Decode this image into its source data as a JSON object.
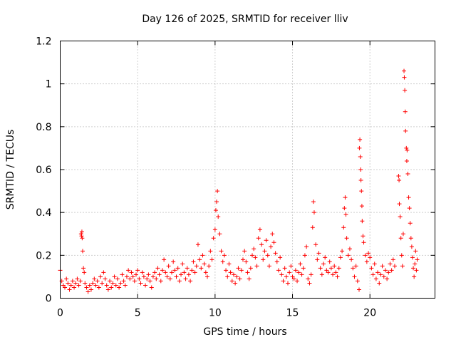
{
  "chart_data": {
    "type": "scatter",
    "title": "Day 126 of 2025, SRMTID for receiver lliv",
    "xlabel": "GPS time / hours",
    "ylabel": "SRMTID / TECUs",
    "xlim": [
      0,
      24.2
    ],
    "ylim": [
      0,
      1.2
    ],
    "xticks": [
      0,
      5,
      10,
      15,
      20
    ],
    "xtick_labels": [
      "0",
      "5",
      "10",
      "15",
      "20"
    ],
    "yticks": [
      0,
      0.2,
      0.4,
      0.6,
      0.8,
      1.0,
      1.2
    ],
    "ytick_labels": [
      "0",
      "0.2",
      "0.4",
      "0.6",
      "0.8",
      "1",
      "1.2"
    ],
    "grid": true,
    "marker": "+",
    "series": [
      {
        "name": "SRMTID",
        "color": "#ff0000",
        "points": [
          [
            0.0,
            0.13
          ],
          [
            0.1,
            0.08
          ],
          [
            0.2,
            0.06
          ],
          [
            0.3,
            0.05
          ],
          [
            0.4,
            0.09
          ],
          [
            0.5,
            0.07
          ],
          [
            0.6,
            0.04
          ],
          [
            0.7,
            0.06
          ],
          [
            0.8,
            0.08
          ],
          [
            0.9,
            0.05
          ],
          [
            1.0,
            0.07
          ],
          [
            1.1,
            0.09
          ],
          [
            1.2,
            0.06
          ],
          [
            1.3,
            0.08
          ],
          [
            1.35,
            0.3
          ],
          [
            1.38,
            0.29
          ],
          [
            1.4,
            0.31
          ],
          [
            1.42,
            0.28
          ],
          [
            1.45,
            0.22
          ],
          [
            1.5,
            0.14
          ],
          [
            1.55,
            0.12
          ],
          [
            1.6,
            0.07
          ],
          [
            1.7,
            0.05
          ],
          [
            1.8,
            0.03
          ],
          [
            1.9,
            0.06
          ],
          [
            2.0,
            0.04
          ],
          [
            2.1,
            0.07
          ],
          [
            2.2,
            0.09
          ],
          [
            2.3,
            0.06
          ],
          [
            2.4,
            0.08
          ],
          [
            2.5,
            0.05
          ],
          [
            2.6,
            0.1
          ],
          [
            2.7,
            0.07
          ],
          [
            2.8,
            0.12
          ],
          [
            2.9,
            0.09
          ],
          [
            3.0,
            0.06
          ],
          [
            3.1,
            0.04
          ],
          [
            3.2,
            0.08
          ],
          [
            3.3,
            0.05
          ],
          [
            3.4,
            0.07
          ],
          [
            3.5,
            0.1
          ],
          [
            3.6,
            0.06
          ],
          [
            3.7,
            0.09
          ],
          [
            3.8,
            0.05
          ],
          [
            3.9,
            0.07
          ],
          [
            4.0,
            0.11
          ],
          [
            4.1,
            0.08
          ],
          [
            4.2,
            0.06
          ],
          [
            4.3,
            0.1
          ],
          [
            4.4,
            0.13
          ],
          [
            4.5,
            0.09
          ],
          [
            4.6,
            0.12
          ],
          [
            4.7,
            0.1
          ],
          [
            4.8,
            0.08
          ],
          [
            4.9,
            0.11
          ],
          [
            5.0,
            0.13
          ],
          [
            5.1,
            0.09
          ],
          [
            5.2,
            0.07
          ],
          [
            5.3,
            0.12
          ],
          [
            5.4,
            0.1
          ],
          [
            5.5,
            0.06
          ],
          [
            5.6,
            0.09
          ],
          [
            5.7,
            0.11
          ],
          [
            5.8,
            0.08
          ],
          [
            5.9,
            0.05
          ],
          [
            6.0,
            0.1
          ],
          [
            6.1,
            0.12
          ],
          [
            6.2,
            0.09
          ],
          [
            6.3,
            0.14
          ],
          [
            6.4,
            0.11
          ],
          [
            6.5,
            0.08
          ],
          [
            6.6,
            0.13
          ],
          [
            6.7,
            0.18
          ],
          [
            6.8,
            0.12
          ],
          [
            6.9,
            0.1
          ],
          [
            7.0,
            0.15
          ],
          [
            7.1,
            0.09
          ],
          [
            7.2,
            0.12
          ],
          [
            7.3,
            0.17
          ],
          [
            7.4,
            0.13
          ],
          [
            7.5,
            0.1
          ],
          [
            7.6,
            0.14
          ],
          [
            7.7,
            0.08
          ],
          [
            7.8,
            0.11
          ],
          [
            7.9,
            0.16
          ],
          [
            8.0,
            0.12
          ],
          [
            8.1,
            0.09
          ],
          [
            8.2,
            0.14
          ],
          [
            8.3,
            0.11
          ],
          [
            8.4,
            0.08
          ],
          [
            8.5,
            0.13
          ],
          [
            8.6,
            0.17
          ],
          [
            8.7,
            0.12
          ],
          [
            8.8,
            0.15
          ],
          [
            8.9,
            0.25
          ],
          [
            9.0,
            0.18
          ],
          [
            9.1,
            0.14
          ],
          [
            9.2,
            0.2
          ],
          [
            9.3,
            0.16
          ],
          [
            9.4,
            0.12
          ],
          [
            9.5,
            0.1
          ],
          [
            9.6,
            0.15
          ],
          [
            9.7,
            0.22
          ],
          [
            9.8,
            0.18
          ],
          [
            9.9,
            0.28
          ],
          [
            10.0,
            0.32
          ],
          [
            10.05,
            0.41
          ],
          [
            10.1,
            0.45
          ],
          [
            10.15,
            0.5
          ],
          [
            10.2,
            0.38
          ],
          [
            10.3,
            0.3
          ],
          [
            10.4,
            0.22
          ],
          [
            10.5,
            0.17
          ],
          [
            10.6,
            0.2
          ],
          [
            10.7,
            0.13
          ],
          [
            10.8,
            0.1
          ],
          [
            10.9,
            0.16
          ],
          [
            11.0,
            0.12
          ],
          [
            11.1,
            0.08
          ],
          [
            11.2,
            0.11
          ],
          [
            11.3,
            0.07
          ],
          [
            11.4,
            0.1
          ],
          [
            11.5,
            0.14
          ],
          [
            11.6,
            0.09
          ],
          [
            11.7,
            0.13
          ],
          [
            11.8,
            0.18
          ],
          [
            11.9,
            0.22
          ],
          [
            12.0,
            0.17
          ],
          [
            12.1,
            0.12
          ],
          [
            12.2,
            0.09
          ],
          [
            12.3,
            0.14
          ],
          [
            12.4,
            0.2
          ],
          [
            12.5,
            0.23
          ],
          [
            12.6,
            0.19
          ],
          [
            12.7,
            0.15
          ],
          [
            12.8,
            0.28
          ],
          [
            12.9,
            0.32
          ],
          [
            13.0,
            0.25
          ],
          [
            13.1,
            0.18
          ],
          [
            13.2,
            0.22
          ],
          [
            13.3,
            0.27
          ],
          [
            13.4,
            0.2
          ],
          [
            13.5,
            0.15
          ],
          [
            13.6,
            0.24
          ],
          [
            13.7,
            0.3
          ],
          [
            13.8,
            0.26
          ],
          [
            13.9,
            0.21
          ],
          [
            14.0,
            0.17
          ],
          [
            14.1,
            0.13
          ],
          [
            14.2,
            0.19
          ],
          [
            14.3,
            0.11
          ],
          [
            14.4,
            0.08
          ],
          [
            14.5,
            0.14
          ],
          [
            14.6,
            0.1
          ],
          [
            14.7,
            0.07
          ],
          [
            14.8,
            0.12
          ],
          [
            14.9,
            0.15
          ],
          [
            15.0,
            0.1
          ],
          [
            15.1,
            0.09
          ],
          [
            15.2,
            0.13
          ],
          [
            15.3,
            0.08
          ],
          [
            15.4,
            0.12
          ],
          [
            15.5,
            0.16
          ],
          [
            15.6,
            0.11
          ],
          [
            15.7,
            0.14
          ],
          [
            15.8,
            0.2
          ],
          [
            15.9,
            0.24
          ],
          [
            16.0,
            0.09
          ],
          [
            16.1,
            0.07
          ],
          [
            16.2,
            0.11
          ],
          [
            16.3,
            0.33
          ],
          [
            16.35,
            0.45
          ],
          [
            16.4,
            0.4
          ],
          [
            16.5,
            0.25
          ],
          [
            16.6,
            0.18
          ],
          [
            16.7,
            0.21
          ],
          [
            16.8,
            0.14
          ],
          [
            16.9,
            0.11
          ],
          [
            17.0,
            0.16
          ],
          [
            17.1,
            0.19
          ],
          [
            17.2,
            0.13
          ],
          [
            17.3,
            0.12
          ],
          [
            17.4,
            0.17
          ],
          [
            17.5,
            0.14
          ],
          [
            17.6,
            0.11
          ],
          [
            17.7,
            0.15
          ],
          [
            17.8,
            0.12
          ],
          [
            17.9,
            0.1
          ],
          [
            18.0,
            0.14
          ],
          [
            18.1,
            0.19
          ],
          [
            18.2,
            0.22
          ],
          [
            18.3,
            0.33
          ],
          [
            18.35,
            0.42
          ],
          [
            18.4,
            0.47
          ],
          [
            18.45,
            0.39
          ],
          [
            18.5,
            0.28
          ],
          [
            18.6,
            0.2
          ],
          [
            18.7,
            0.23
          ],
          [
            18.8,
            0.18
          ],
          [
            18.9,
            0.14
          ],
          [
            19.0,
            0.1
          ],
          [
            19.1,
            0.15
          ],
          [
            19.2,
            0.08
          ],
          [
            19.3,
            0.04
          ],
          [
            19.32,
            0.7
          ],
          [
            19.35,
            0.74
          ],
          [
            19.38,
            0.66
          ],
          [
            19.4,
            0.6
          ],
          [
            19.42,
            0.55
          ],
          [
            19.45,
            0.5
          ],
          [
            19.48,
            0.43
          ],
          [
            19.5,
            0.36
          ],
          [
            19.55,
            0.29
          ],
          [
            19.6,
            0.26
          ],
          [
            19.7,
            0.2
          ],
          [
            19.8,
            0.17
          ],
          [
            19.9,
            0.21
          ],
          [
            20.0,
            0.19
          ],
          [
            20.1,
            0.14
          ],
          [
            20.2,
            0.11
          ],
          [
            20.3,
            0.16
          ],
          [
            20.4,
            0.09
          ],
          [
            20.5,
            0.12
          ],
          [
            20.6,
            0.07
          ],
          [
            20.7,
            0.11
          ],
          [
            20.8,
            0.15
          ],
          [
            20.9,
            0.1
          ],
          [
            21.0,
            0.13
          ],
          [
            21.1,
            0.09
          ],
          [
            21.2,
            0.12
          ],
          [
            21.3,
            0.16
          ],
          [
            21.4,
            0.13
          ],
          [
            21.5,
            0.18
          ],
          [
            21.6,
            0.15
          ],
          [
            21.85,
            0.57
          ],
          [
            21.88,
            0.55
          ],
          [
            21.9,
            0.44
          ],
          [
            21.95,
            0.38
          ],
          [
            22.0,
            0.28
          ],
          [
            22.05,
            0.2
          ],
          [
            22.1,
            0.15
          ],
          [
            22.15,
            0.3
          ],
          [
            22.2,
            1.06
          ],
          [
            22.22,
            1.03
          ],
          [
            22.25,
            0.97
          ],
          [
            22.28,
            0.87
          ],
          [
            22.3,
            0.78
          ],
          [
            22.35,
            0.7
          ],
          [
            22.38,
            0.64
          ],
          [
            22.4,
            0.69
          ],
          [
            22.45,
            0.58
          ],
          [
            22.5,
            0.47
          ],
          [
            22.55,
            0.42
          ],
          [
            22.6,
            0.35
          ],
          [
            22.65,
            0.28
          ],
          [
            22.7,
            0.24
          ],
          [
            22.75,
            0.19
          ],
          [
            22.8,
            0.14
          ],
          [
            22.85,
            0.1
          ],
          [
            22.9,
            0.16
          ],
          [
            22.95,
            0.22
          ],
          [
            23.0,
            0.13
          ],
          [
            23.05,
            0.18
          ]
        ]
      }
    ]
  }
}
